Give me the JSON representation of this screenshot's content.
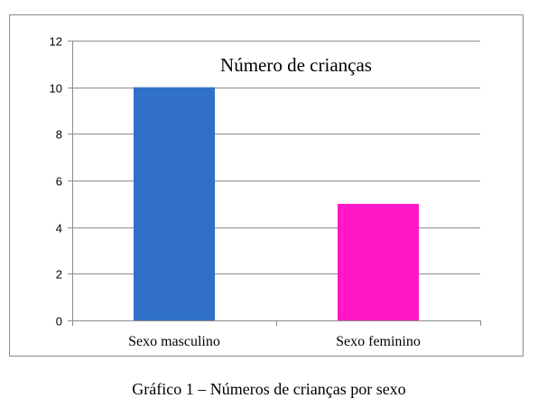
{
  "chart_data": {
    "type": "bar",
    "title": "Número de crianças",
    "categories": [
      "Sexo masculino",
      "Sexo feminino"
    ],
    "values": [
      10,
      5
    ],
    "colors": [
      "#3170c8",
      "#ff18c5"
    ],
    "ylim": [
      0,
      12
    ],
    "yticks": [
      0,
      2,
      4,
      6,
      8,
      10,
      12
    ],
    "xlabel": "",
    "ylabel": "",
    "grid": true,
    "legend": "none"
  },
  "caption": "Gráfico 1 – Números de crianças por sexo"
}
